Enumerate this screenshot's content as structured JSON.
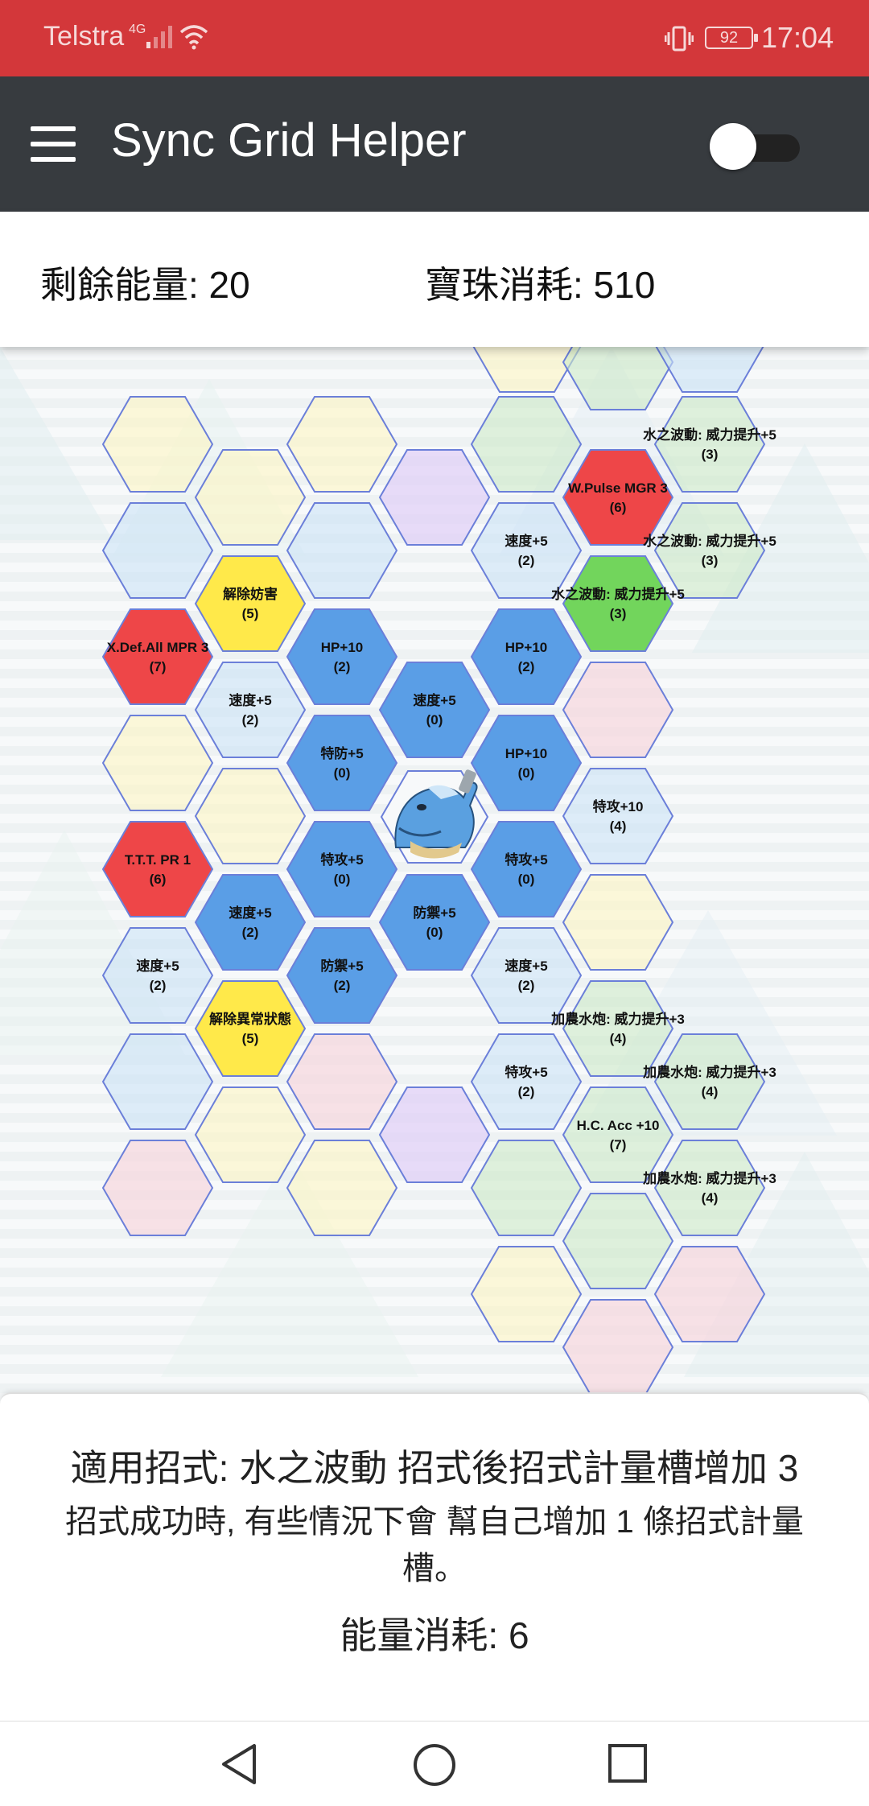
{
  "status_bar": {
    "carrier": "Telstra",
    "network": "4G",
    "battery": "92",
    "time": "17:04"
  },
  "app_bar": {
    "title": "Sync Grid Helper",
    "toggle_on": false
  },
  "info": {
    "energy_label": "剩餘能量: 20",
    "orbs_label": "寶珠消耗: 510"
  },
  "colors": {
    "status_bar": "#d3373a",
    "app_bar": "#373b3f",
    "hex_border": "#6b7fd9",
    "active_blue": "#5a9ee6",
    "red": "#ee4648",
    "yellow": "#ffe94a",
    "green": "#72d55c"
  },
  "grid": {
    "center_icon": "blastoise-pokemon-icon",
    "tiles": [
      {
        "name": "tile-top-faded-1",
        "label": "",
        "cost": "",
        "color": "faint-yellow"
      },
      {
        "name": "tile-top-faded-2",
        "label": "",
        "cost": "",
        "color": "faint-green"
      },
      {
        "name": "tile-top-faded-3",
        "label": "",
        "cost": "",
        "color": "faint-blue"
      },
      {
        "name": "tile-empty-yellow-a",
        "label": "",
        "cost": "",
        "color": "faint-yellow"
      },
      {
        "name": "tile-empty-yellow-b",
        "label": "",
        "cost": "",
        "color": "faint-yellow"
      },
      {
        "name": "tile-empty-green-a",
        "label": "",
        "cost": "",
        "color": "faint-green"
      },
      {
        "name": "tile-water-pulse-power-1",
        "label": "水之波動: 威力提升+5",
        "cost": "(3)",
        "color": "faint-green"
      },
      {
        "name": "tile-empty-yellow-c",
        "label": "",
        "cost": "",
        "color": "faint-yellow"
      },
      {
        "name": "tile-empty-purple-a",
        "label": "",
        "cost": "",
        "color": "faint-purple"
      },
      {
        "name": "tile-wpulse-mgr3",
        "label": "W.Pulse MGR 3",
        "cost": "(6)",
        "color": "red"
      },
      {
        "name": "tile-empty-blue-a",
        "label": "",
        "cost": "",
        "color": "faint-blue"
      },
      {
        "name": "tile-empty-blue-b",
        "label": "",
        "cost": "",
        "color": "faint-blue"
      },
      {
        "name": "tile-speed-5-a",
        "label": "速度+5",
        "cost": "(2)",
        "color": "faint-blue"
      },
      {
        "name": "tile-water-pulse-power-2",
        "label": "水之波動: 威力提升+5",
        "cost": "(3)",
        "color": "faint-green"
      },
      {
        "name": "tile-remove-hindrance",
        "label": "解除妨害",
        "cost": "(5)",
        "color": "yellow"
      },
      {
        "name": "tile-water-pulse-power-3",
        "label": "水之波動: 威力提升+5",
        "cost": "(3)",
        "color": "green"
      },
      {
        "name": "tile-xdef-all-mpr3",
        "label": "X.Def.All MPR 3",
        "cost": "(7)",
        "color": "red"
      },
      {
        "name": "tile-hp-10-a",
        "label": "HP+10",
        "cost": "(2)",
        "color": "blue"
      },
      {
        "name": "tile-hp-10-b",
        "label": "HP+10",
        "cost": "(2)",
        "color": "blue"
      },
      {
        "name": "tile-speed-5-b",
        "label": "速度+5",
        "cost": "(2)",
        "color": "faint-blue"
      },
      {
        "name": "tile-speed-5-c",
        "label": "速度+5",
        "cost": "(0)",
        "color": "blue"
      },
      {
        "name": "tile-empty-pink-a",
        "label": "",
        "cost": "",
        "color": "faint-pink"
      },
      {
        "name": "tile-empty-yellow-d",
        "label": "",
        "cost": "",
        "color": "faint-yellow"
      },
      {
        "name": "tile-sp-def-5",
        "label": "特防+5",
        "cost": "(0)",
        "color": "blue"
      },
      {
        "name": "tile-hp-10-c",
        "label": "HP+10",
        "cost": "(0)",
        "color": "blue"
      },
      {
        "name": "tile-empty-yellow-e",
        "label": "",
        "cost": "",
        "color": "faint-yellow"
      },
      {
        "name": "tile-sp-atk-10",
        "label": "特攻+10",
        "cost": "(4)",
        "color": "faint-blue"
      },
      {
        "name": "tile-ttt-pr1",
        "label": "T.T.T. PR 1",
        "cost": "(6)",
        "color": "red"
      },
      {
        "name": "tile-sp-atk-5-a",
        "label": "特攻+5",
        "cost": "(0)",
        "color": "blue"
      },
      {
        "name": "tile-sp-atk-5-b",
        "label": "特攻+5",
        "cost": "(0)",
        "color": "blue"
      },
      {
        "name": "tile-speed-5-d",
        "label": "速度+5",
        "cost": "(2)",
        "color": "blue"
      },
      {
        "name": "tile-defense-5-a",
        "label": "防禦+5",
        "cost": "(0)",
        "color": "blue"
      },
      {
        "name": "tile-empty-yellow-f",
        "label": "",
        "cost": "",
        "color": "faint-yellow"
      },
      {
        "name": "tile-speed-5-e",
        "label": "速度+5",
        "cost": "(2)",
        "color": "faint-blue"
      },
      {
        "name": "tile-defense-5-b",
        "label": "防禦+5",
        "cost": "(2)",
        "color": "blue"
      },
      {
        "name": "tile-speed-5-f",
        "label": "速度+5",
        "cost": "(2)",
        "color": "faint-blue"
      },
      {
        "name": "tile-remove-status",
        "label": "解除異常狀態",
        "cost": "(5)",
        "color": "yellow"
      },
      {
        "name": "tile-hydro-cannon-power-1",
        "label": "加農水炮: 威力提升+3",
        "cost": "(4)",
        "color": "faint-green"
      },
      {
        "name": "tile-empty-blue-c",
        "label": "",
        "cost": "",
        "color": "faint-blue"
      },
      {
        "name": "tile-empty-pink-b",
        "label": "",
        "cost": "",
        "color": "faint-pink"
      },
      {
        "name": "tile-sp-atk-5-c",
        "label": "特攻+5",
        "cost": "(2)",
        "color": "faint-blue"
      },
      {
        "name": "tile-hydro-cannon-power-2",
        "label": "加農水炮: 威力提升+3",
        "cost": "(4)",
        "color": "faint-green"
      },
      {
        "name": "tile-empty-yellow-g",
        "label": "",
        "cost": "",
        "color": "faint-yellow"
      },
      {
        "name": "tile-empty-purple-b",
        "label": "",
        "cost": "",
        "color": "faint-purple"
      },
      {
        "name": "tile-hc-acc-10",
        "label": "H.C. Acc +10",
        "cost": "(7)",
        "color": "faint-green"
      },
      {
        "name": "tile-empty-pink-c",
        "label": "",
        "cost": "",
        "color": "faint-pink"
      },
      {
        "name": "tile-empty-yellow-h",
        "label": "",
        "cost": "",
        "color": "faint-yellow"
      },
      {
        "name": "tile-empty-green-b",
        "label": "",
        "cost": "",
        "color": "faint-green"
      },
      {
        "name": "tile-hydro-cannon-power-3",
        "label": "加農水炮: 威力提升+3",
        "cost": "(4)",
        "color": "faint-green"
      },
      {
        "name": "tile-empty-green-c",
        "label": "",
        "cost": "",
        "color": "faint-green"
      },
      {
        "name": "tile-empty-yellow-i",
        "label": "",
        "cost": "",
        "color": "faint-yellow"
      },
      {
        "name": "tile-empty-pink-d",
        "label": "",
        "cost": "",
        "color": "faint-pink"
      },
      {
        "name": "tile-empty-pink-e",
        "label": "",
        "cost": "",
        "color": "faint-pink"
      }
    ]
  },
  "description": {
    "move_line": "適用招式: 水之波動 招式後招式計量槽增加 3",
    "effect_line": "招式成功時, 有些情況下會 幫自己增加 1 條招式計量槽。",
    "cost_line": "能量消耗: 6"
  },
  "nav": {
    "back_icon": "back-triangle-icon",
    "home_icon": "home-circle-icon",
    "recents_icon": "recents-square-icon"
  }
}
